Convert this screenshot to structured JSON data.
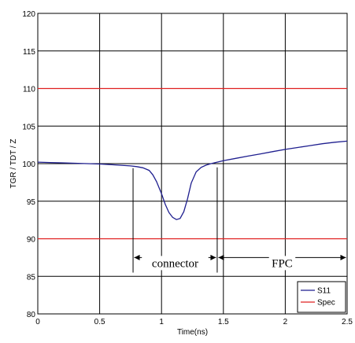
{
  "chart_data": {
    "type": "line",
    "xlabel": "Time(ns)",
    "ylabel": "TGR / TDT / Z",
    "xlim": [
      0,
      2.5
    ],
    "ylim": [
      80,
      120
    ],
    "xticks": [
      "0",
      "0.5",
      "1",
      "1.5",
      "2",
      "2.5"
    ],
    "yticks": [
      "80",
      "85",
      "90",
      "95",
      "100",
      "105",
      "110",
      "115",
      "120"
    ],
    "grid": true,
    "legend_position": "bottom-right",
    "series": [
      {
        "name": "S11",
        "color": "#1f1f8f",
        "x": [
          0,
          0.1,
          0.2,
          0.3,
          0.4,
          0.5,
          0.6,
          0.7,
          0.75,
          0.8,
          0.85,
          0.9,
          0.93,
          0.96,
          1.0,
          1.03,
          1.06,
          1.09,
          1.12,
          1.15,
          1.18,
          1.21,
          1.24,
          1.28,
          1.32,
          1.36,
          1.4,
          1.45,
          1.5,
          1.6,
          1.7,
          1.8,
          1.9,
          2.0,
          2.1,
          2.2,
          2.3,
          2.4,
          2.5
        ],
        "y": [
          100.2,
          100.15,
          100.1,
          100.05,
          100.0,
          99.95,
          99.85,
          99.75,
          99.7,
          99.6,
          99.45,
          99.1,
          98.5,
          97.6,
          96.0,
          94.6,
          93.5,
          92.85,
          92.55,
          92.7,
          93.6,
          95.3,
          97.4,
          98.9,
          99.5,
          99.8,
          100.0,
          100.2,
          100.4,
          100.7,
          101.0,
          101.3,
          101.6,
          101.9,
          102.15,
          102.4,
          102.65,
          102.85,
          103.0
        ]
      },
      {
        "name": "Spec",
        "color": "#e02020",
        "x": [
          0,
          2.5
        ],
        "y": [
          110,
          110
        ]
      },
      {
        "name": "Spec",
        "color": "#e02020",
        "x": [
          0,
          2.5
        ],
        "y": [
          90,
          90
        ]
      }
    ],
    "annotations": {
      "markers": [
        {
          "x": 0.77,
          "y_top": 99.4,
          "y_bottom": 85.5
        },
        {
          "x": 1.45,
          "y_top": 99.5,
          "y_bottom": 85.5
        }
      ],
      "connector": {
        "label": "connector",
        "x_from": 0.77,
        "x_to": 1.45,
        "y": 87.5
      },
      "fpc": {
        "label": "FPC",
        "x_from": 1.45,
        "x_to": 2.5,
        "y": 87.5
      }
    }
  }
}
